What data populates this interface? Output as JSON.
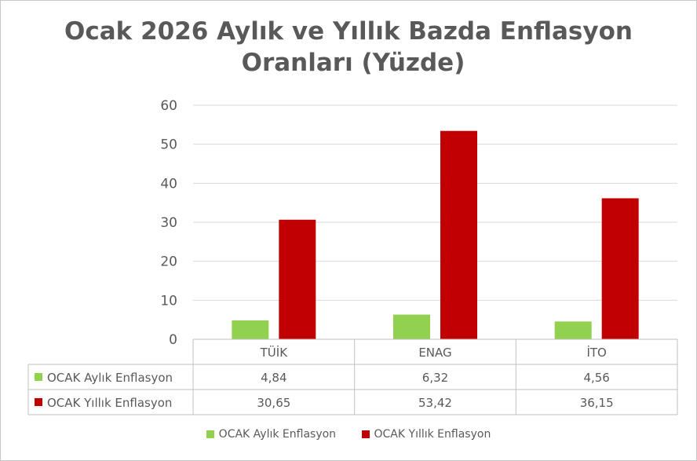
{
  "chart_data": {
    "type": "bar",
    "title_line1": "Ocak 2026 Aylık ve Yıllık Bazda Enflasyon",
    "title_line2": "Oranları (Yüzde)",
    "categories": [
      "TÜİK",
      "ENAG",
      "İTO"
    ],
    "series": [
      {
        "name": "OCAK Aylık Enflasyon",
        "values": [
          4.84,
          6.32,
          4.56
        ],
        "labels": [
          "4,84",
          "6,32",
          "4,56"
        ],
        "color": "#92d050"
      },
      {
        "name": "OCAK Yıllık Enflasyon",
        "values": [
          30.65,
          53.42,
          36.15
        ],
        "labels": [
          "30,65",
          "53,42",
          "36,15"
        ],
        "color": "#c00000"
      }
    ],
    "ylim": [
      0,
      60
    ],
    "yticks": [
      0,
      10,
      20,
      30,
      40,
      50,
      60
    ],
    "grid": true,
    "data_table": true,
    "legend_position": "bottom"
  }
}
